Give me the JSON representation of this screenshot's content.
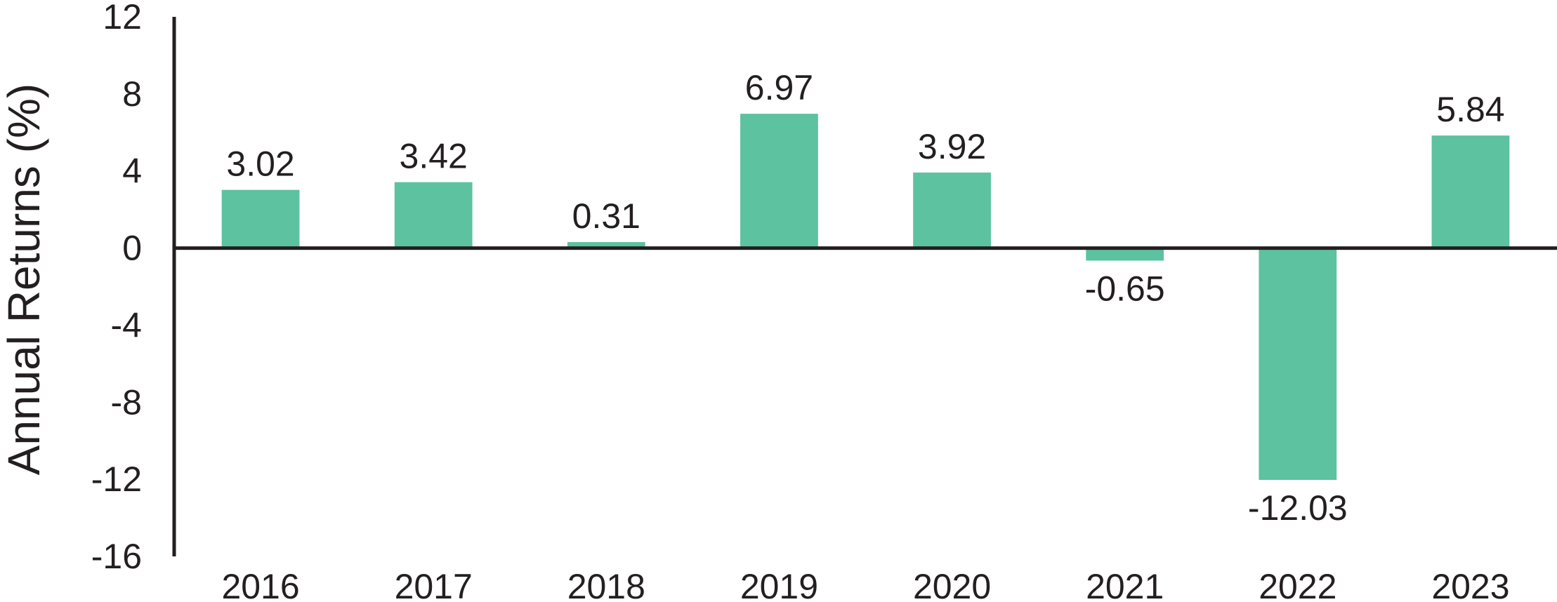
{
  "chart_data": {
    "type": "bar",
    "categories": [
      "2016",
      "2017",
      "2018",
      "2019",
      "2020",
      "2021",
      "2022",
      "2023"
    ],
    "values": [
      3.02,
      3.42,
      0.31,
      6.97,
      3.92,
      -0.65,
      -12.03,
      5.84
    ],
    "value_labels": [
      "3.02",
      "3.42",
      "0.31",
      "6.97",
      "3.92",
      "-0.65",
      "-12.03",
      "5.84"
    ],
    "title": "",
    "xlabel": "",
    "ylabel": "Annual Returns (%)",
    "ylim": [
      -16,
      12
    ],
    "yticks": [
      12,
      8,
      4,
      0,
      -4,
      -8,
      -12,
      -16
    ],
    "ytick_labels": [
      "12",
      "8",
      "4",
      "0",
      "-4",
      "-8",
      "-12",
      "-16"
    ],
    "grid": false,
    "legend": "none",
    "colors": {
      "bar": "#5cc2a0",
      "axis": "#231f20",
      "text": "#231f20"
    }
  }
}
